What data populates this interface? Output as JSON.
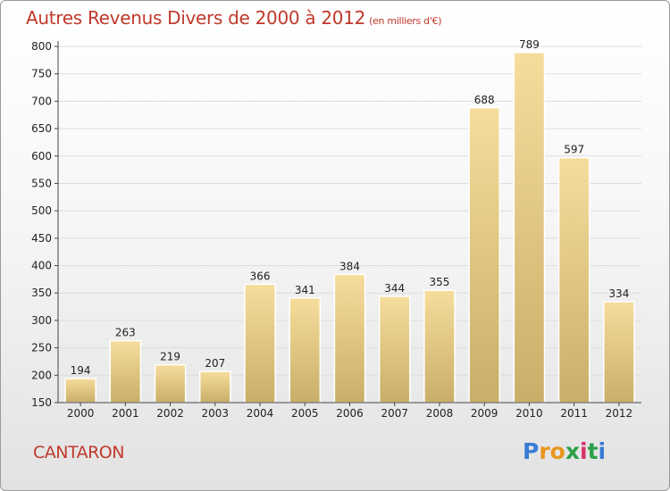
{
  "header": {
    "title": "Autres Revenus Divers de 2000 à 2012",
    "unit": "(en milliers d'€)"
  },
  "footer": {
    "commune": "CANTARON",
    "logo_text": "Proxiti"
  },
  "colors": {
    "title": "#c0392b",
    "bar_light": "#f7dd9c",
    "bar_dark": "#c8ae68",
    "grid": "#dddddd"
  },
  "chart_data": {
    "type": "bar",
    "title": "Autres Revenus Divers de 2000 à 2012",
    "subtitle": "(en milliers d'€)",
    "xlabel": "",
    "ylabel": "",
    "categories": [
      "2000",
      "2001",
      "2002",
      "2003",
      "2004",
      "2005",
      "2006",
      "2007",
      "2008",
      "2009",
      "2010",
      "2011",
      "2012"
    ],
    "values": [
      194,
      263,
      219,
      207,
      366,
      341,
      384,
      344,
      355,
      688,
      789,
      597,
      334
    ],
    "ylim": [
      150,
      800
    ],
    "yticks": [
      150,
      200,
      250,
      300,
      350,
      400,
      450,
      500,
      550,
      600,
      650,
      700,
      750,
      800
    ],
    "grid": true
  }
}
